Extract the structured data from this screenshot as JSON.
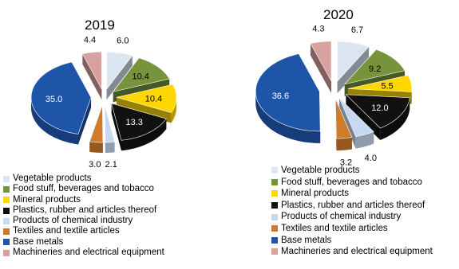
{
  "legend_entries": [
    {
      "label": "Vegetable products",
      "color": "#dce6f2"
    },
    {
      "label": "Food stuff, beverages and tobacco",
      "color": "#77933c"
    },
    {
      "label": "Mineral products",
      "color": "#ffd700"
    },
    {
      "label": "Plastics, rubber and articles thereof",
      "color": "#111111"
    },
    {
      "label": "Products of chemical industry",
      "color": "#c6d9f1"
    },
    {
      "label": "Textiles and textile articles",
      "color": "#d07a2e"
    },
    {
      "label": "Base metals",
      "color": "#1f55a8"
    },
    {
      "label": "Machineries and electrical equipment",
      "color": "#d9a0a0"
    }
  ],
  "chart_data": [
    {
      "type": "pie",
      "title": "2019",
      "categories": [
        "Vegetable products",
        "Food stuff, beverages and tobacco",
        "Mineral products",
        "Plastics, rubber and articles thereof",
        "Products of chemical industry",
        "Textiles and textile articles",
        "Base metals",
        "Machineries and electrical equipment"
      ],
      "values": [
        6.0,
        10.4,
        10.4,
        13.3,
        2.1,
        3.0,
        35.0,
        4.4
      ],
      "value_labels": [
        "6.0",
        "10.4",
        "10.4",
        "13.3",
        "2.1",
        "3.0",
        "35.0",
        "4.4"
      ],
      "exploded": true,
      "three_d": true
    },
    {
      "type": "pie",
      "title": "2020",
      "categories": [
        "Vegetable products",
        "Food stuff, beverages and tobacco",
        "Mineral products",
        "Plastics, rubber and articles thereof",
        "Products of chemical industry",
        "Textiles and textile articles",
        "Base metals",
        "Machineries and electrical equipment"
      ],
      "values": [
        6.7,
        9.2,
        5.5,
        12.0,
        4.0,
        3.2,
        36.6,
        4.3
      ],
      "value_labels": [
        "6.7",
        "9.2",
        "5.5",
        "12.0",
        "4.0",
        "3.2",
        "36.6",
        "4.3"
      ],
      "exploded": true,
      "three_d": true
    }
  ]
}
